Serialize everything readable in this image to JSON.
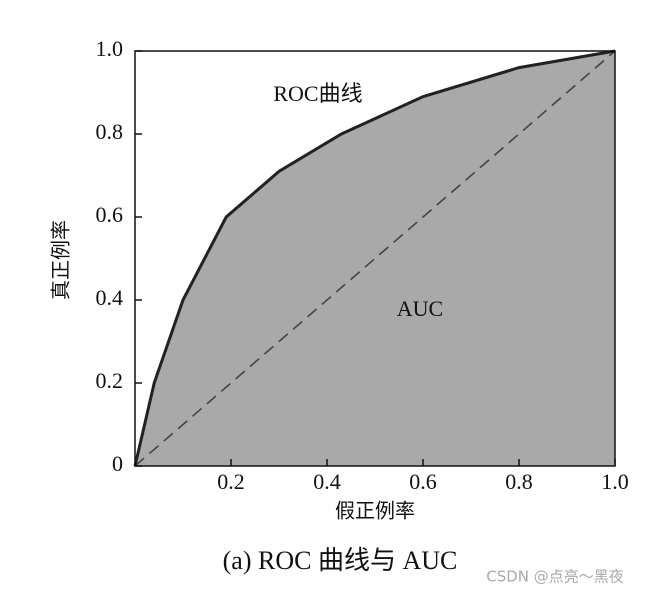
{
  "chart_data": {
    "type": "area",
    "annotations": [
      "ROC曲线",
      "AUC"
    ],
    "x_label": "假正例率",
    "y_label": "真正例率",
    "caption": "(a) ROC 曲线与 AUC",
    "watermark": "CSDN @点亮～黑夜",
    "series": [
      {
        "color": "#a9a9a9",
        "x": [
          0,
          0.04,
          0.1,
          0.19,
          0.3,
          0.43,
          0.6,
          0.8,
          1
        ],
        "values": [
          0,
          0.2,
          0.4,
          0.6,
          0.71,
          0.8,
          0.89,
          0.96,
          1
        ]
      }
    ],
    "xlim": [
      0,
      1
    ],
    "ylim": [
      0,
      1
    ],
    "xticks": [
      0.2,
      0.4,
      0.6,
      0.8,
      {
        "value": 1,
        "label": "1.0"
      }
    ],
    "yticks": [
      0,
      0.2,
      0.4,
      0.6,
      0.8,
      {
        "value": 1,
        "label": "1.0"
      }
    ]
  }
}
